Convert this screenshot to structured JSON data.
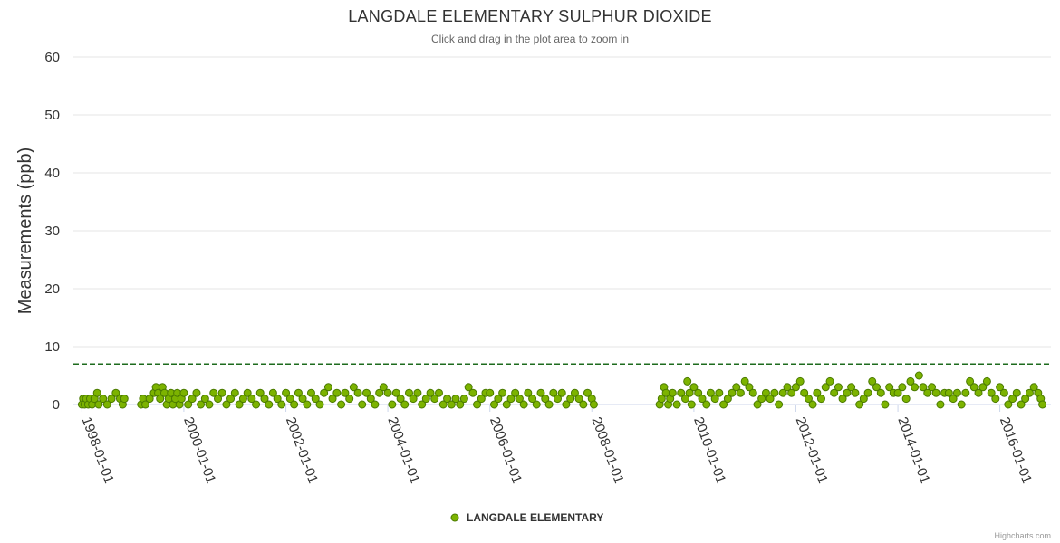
{
  "chart_data": {
    "type": "scatter",
    "title": "LANGDALE ELEMENTARY SULPHUR DIOXIDE",
    "subtitle": "Click and drag in the plot area to zoom in",
    "ylabel": "Measurements (ppb)",
    "xlabel": "",
    "ylim": [
      0,
      60
    ],
    "yticks": [
      0,
      10,
      20,
      30,
      40,
      50,
      60
    ],
    "xlim": [
      "1997-11-01",
      "2017-01-01"
    ],
    "xticks": [
      "1998-01-01",
      "2000-01-01",
      "2002-01-01",
      "2004-01-01",
      "2006-01-01",
      "2008-01-01",
      "2010-01-01",
      "2012-01-01",
      "2014-01-01",
      "2016-01-01"
    ],
    "threshold_line": {
      "value": 7,
      "color": "#1e6b1e",
      "style": "dashed"
    },
    "legend": "bottom-center",
    "series": [
      {
        "name": "LANGDALE ELEMENTARY",
        "color": "#7cb300",
        "values": [
          [
            "1998-01-01",
            0
          ],
          [
            "1998-01-10",
            1
          ],
          [
            "1998-01-20",
            0
          ],
          [
            "1998-02-01",
            1
          ],
          [
            "1998-02-15",
            0
          ],
          [
            "1998-03-01",
            1
          ],
          [
            "1998-03-15",
            0
          ],
          [
            "1998-04-01",
            1
          ],
          [
            "1998-04-20",
            2
          ],
          [
            "1998-05-01",
            0
          ],
          [
            "1998-06-01",
            1
          ],
          [
            "1998-07-01",
            0
          ],
          [
            "1998-08-01",
            1
          ],
          [
            "1998-09-01",
            2
          ],
          [
            "1998-10-01",
            1
          ],
          [
            "1998-10-20",
            0
          ],
          [
            "1998-11-01",
            1
          ],
          [
            "1999-03-01",
            0
          ],
          [
            "1999-03-15",
            1
          ],
          [
            "1999-04-01",
            0
          ],
          [
            "1999-05-01",
            1
          ],
          [
            "1999-06-01",
            2
          ],
          [
            "1999-06-15",
            3
          ],
          [
            "1999-07-01",
            2
          ],
          [
            "1999-07-15",
            1
          ],
          [
            "1999-08-01",
            3
          ],
          [
            "1999-08-15",
            2
          ],
          [
            "1999-09-01",
            0
          ],
          [
            "1999-09-15",
            1
          ],
          [
            "1999-10-01",
            2
          ],
          [
            "1999-10-15",
            0
          ],
          [
            "1999-11-01",
            1
          ],
          [
            "1999-11-15",
            2
          ],
          [
            "1999-12-01",
            0
          ],
          [
            "1999-12-15",
            1
          ],
          [
            "2000-01-01",
            2
          ],
          [
            "2000-02-01",
            0
          ],
          [
            "2000-03-01",
            1
          ],
          [
            "2000-04-01",
            2
          ],
          [
            "2000-05-01",
            0
          ],
          [
            "2000-06-01",
            1
          ],
          [
            "2000-07-01",
            0
          ],
          [
            "2000-08-01",
            2
          ],
          [
            "2000-09-01",
            1
          ],
          [
            "2000-10-01",
            2
          ],
          [
            "2000-11-01",
            0
          ],
          [
            "2000-12-01",
            1
          ],
          [
            "2001-01-01",
            2
          ],
          [
            "2001-02-01",
            0
          ],
          [
            "2001-03-01",
            1
          ],
          [
            "2001-04-01",
            2
          ],
          [
            "2001-05-01",
            1
          ],
          [
            "2001-06-01",
            0
          ],
          [
            "2001-07-01",
            2
          ],
          [
            "2001-08-01",
            1
          ],
          [
            "2001-09-01",
            0
          ],
          [
            "2001-10-01",
            2
          ],
          [
            "2001-11-01",
            1
          ],
          [
            "2001-12-01",
            0
          ],
          [
            "2002-01-01",
            2
          ],
          [
            "2002-02-01",
            1
          ],
          [
            "2002-03-01",
            0
          ],
          [
            "2002-04-01",
            2
          ],
          [
            "2002-05-01",
            1
          ],
          [
            "2002-06-01",
            0
          ],
          [
            "2002-07-01",
            2
          ],
          [
            "2002-08-01",
            1
          ],
          [
            "2002-09-01",
            0
          ],
          [
            "2002-10-01",
            2
          ],
          [
            "2002-11-01",
            3
          ],
          [
            "2002-12-01",
            1
          ],
          [
            "2003-01-01",
            2
          ],
          [
            "2003-02-01",
            0
          ],
          [
            "2003-03-01",
            2
          ],
          [
            "2003-04-01",
            1
          ],
          [
            "2003-05-01",
            3
          ],
          [
            "2003-06-01",
            2
          ],
          [
            "2003-07-01",
            0
          ],
          [
            "2003-08-01",
            2
          ],
          [
            "2003-09-01",
            1
          ],
          [
            "2003-10-01",
            0
          ],
          [
            "2003-11-01",
            2
          ],
          [
            "2003-12-01",
            3
          ],
          [
            "2004-01-01",
            2
          ],
          [
            "2004-02-01",
            0
          ],
          [
            "2004-03-01",
            2
          ],
          [
            "2004-04-01",
            1
          ],
          [
            "2004-05-01",
            0
          ],
          [
            "2004-06-01",
            2
          ],
          [
            "2004-07-01",
            1
          ],
          [
            "2004-08-01",
            2
          ],
          [
            "2004-09-01",
            0
          ],
          [
            "2004-10-01",
            1
          ],
          [
            "2004-11-01",
            2
          ],
          [
            "2004-12-01",
            1
          ],
          [
            "2005-01-01",
            2
          ],
          [
            "2005-02-01",
            0
          ],
          [
            "2005-03-01",
            1
          ],
          [
            "2005-04-01",
            0
          ],
          [
            "2005-05-01",
            1
          ],
          [
            "2005-06-01",
            0
          ],
          [
            "2005-07-01",
            1
          ],
          [
            "2005-08-01",
            3
          ],
          [
            "2005-09-01",
            2
          ],
          [
            "2005-10-01",
            0
          ],
          [
            "2005-11-01",
            1
          ],
          [
            "2005-12-01",
            2
          ],
          [
            "2006-01-01",
            2
          ],
          [
            "2006-02-01",
            0
          ],
          [
            "2006-03-01",
            1
          ],
          [
            "2006-04-01",
            2
          ],
          [
            "2006-05-01",
            0
          ],
          [
            "2006-06-01",
            1
          ],
          [
            "2006-07-01",
            2
          ],
          [
            "2006-08-01",
            1
          ],
          [
            "2006-09-01",
            0
          ],
          [
            "2006-10-01",
            2
          ],
          [
            "2006-11-01",
            1
          ],
          [
            "2006-12-01",
            0
          ],
          [
            "2007-01-01",
            2
          ],
          [
            "2007-02-01",
            1
          ],
          [
            "2007-03-01",
            0
          ],
          [
            "2007-04-01",
            2
          ],
          [
            "2007-05-01",
            1
          ],
          [
            "2007-06-01",
            2
          ],
          [
            "2007-07-01",
            0
          ],
          [
            "2007-08-01",
            1
          ],
          [
            "2007-09-01",
            2
          ],
          [
            "2007-10-01",
            1
          ],
          [
            "2007-11-01",
            0
          ],
          [
            "2007-12-01",
            2
          ],
          [
            "2008-01-01",
            1
          ],
          [
            "2008-01-15",
            0
          ],
          [
            "2009-05-01",
            0
          ],
          [
            "2009-05-15",
            1
          ],
          [
            "2009-06-01",
            3
          ],
          [
            "2009-06-15",
            2
          ],
          [
            "2009-07-01",
            0
          ],
          [
            "2009-07-15",
            1
          ],
          [
            "2009-08-01",
            2
          ],
          [
            "2009-09-01",
            0
          ],
          [
            "2009-10-01",
            2
          ],
          [
            "2009-11-01",
            1
          ],
          [
            "2009-11-15",
            4
          ],
          [
            "2009-12-01",
            2
          ],
          [
            "2009-12-15",
            0
          ],
          [
            "2010-01-01",
            3
          ],
          [
            "2010-02-01",
            2
          ],
          [
            "2010-03-01",
            1
          ],
          [
            "2010-04-01",
            0
          ],
          [
            "2010-05-01",
            2
          ],
          [
            "2010-06-01",
            1
          ],
          [
            "2010-07-01",
            2
          ],
          [
            "2010-08-01",
            0
          ],
          [
            "2010-09-01",
            1
          ],
          [
            "2010-10-01",
            2
          ],
          [
            "2010-11-01",
            3
          ],
          [
            "2010-12-01",
            2
          ],
          [
            "2011-01-01",
            4
          ],
          [
            "2011-02-01",
            3
          ],
          [
            "2011-03-01",
            2
          ],
          [
            "2011-04-01",
            0
          ],
          [
            "2011-05-01",
            1
          ],
          [
            "2011-06-01",
            2
          ],
          [
            "2011-07-01",
            1
          ],
          [
            "2011-08-01",
            2
          ],
          [
            "2011-09-01",
            0
          ],
          [
            "2011-10-01",
            2
          ],
          [
            "2011-11-01",
            3
          ],
          [
            "2011-12-01",
            2
          ],
          [
            "2012-01-01",
            3
          ],
          [
            "2012-02-01",
            4
          ],
          [
            "2012-03-01",
            2
          ],
          [
            "2012-04-01",
            1
          ],
          [
            "2012-05-01",
            0
          ],
          [
            "2012-06-01",
            2
          ],
          [
            "2012-07-01",
            1
          ],
          [
            "2012-08-01",
            3
          ],
          [
            "2012-09-01",
            4
          ],
          [
            "2012-10-01",
            2
          ],
          [
            "2012-11-01",
            3
          ],
          [
            "2012-12-01",
            1
          ],
          [
            "2013-01-01",
            2
          ],
          [
            "2013-02-01",
            3
          ],
          [
            "2013-03-01",
            2
          ],
          [
            "2013-04-01",
            0
          ],
          [
            "2013-05-01",
            1
          ],
          [
            "2013-06-01",
            2
          ],
          [
            "2013-07-01",
            4
          ],
          [
            "2013-08-01",
            3
          ],
          [
            "2013-09-01",
            2
          ],
          [
            "2013-10-01",
            0
          ],
          [
            "2013-11-01",
            3
          ],
          [
            "2013-12-01",
            2
          ],
          [
            "2014-01-01",
            2
          ],
          [
            "2014-02-01",
            3
          ],
          [
            "2014-03-01",
            1
          ],
          [
            "2014-04-01",
            4
          ],
          [
            "2014-05-01",
            3
          ],
          [
            "2014-06-01",
            5
          ],
          [
            "2014-07-01",
            3
          ],
          [
            "2014-08-01",
            2
          ],
          [
            "2014-09-01",
            3
          ],
          [
            "2014-10-01",
            2
          ],
          [
            "2014-11-01",
            0
          ],
          [
            "2014-12-01",
            2
          ],
          [
            "2015-01-01",
            2
          ],
          [
            "2015-02-01",
            1
          ],
          [
            "2015-03-01",
            2
          ],
          [
            "2015-04-01",
            0
          ],
          [
            "2015-05-01",
            2
          ],
          [
            "2015-06-01",
            4
          ],
          [
            "2015-07-01",
            3
          ],
          [
            "2015-08-01",
            2
          ],
          [
            "2015-09-01",
            3
          ],
          [
            "2015-10-01",
            4
          ],
          [
            "2015-11-01",
            2
          ],
          [
            "2015-12-01",
            1
          ],
          [
            "2016-01-01",
            3
          ],
          [
            "2016-02-01",
            2
          ],
          [
            "2016-03-01",
            0
          ],
          [
            "2016-04-01",
            1
          ],
          [
            "2016-05-01",
            2
          ],
          [
            "2016-06-01",
            0
          ],
          [
            "2016-07-01",
            1
          ],
          [
            "2016-08-01",
            2
          ],
          [
            "2016-09-01",
            3
          ],
          [
            "2016-10-01",
            2
          ],
          [
            "2016-10-20",
            1
          ],
          [
            "2016-11-01",
            0
          ]
        ]
      }
    ]
  },
  "credits": "Highcharts.com"
}
